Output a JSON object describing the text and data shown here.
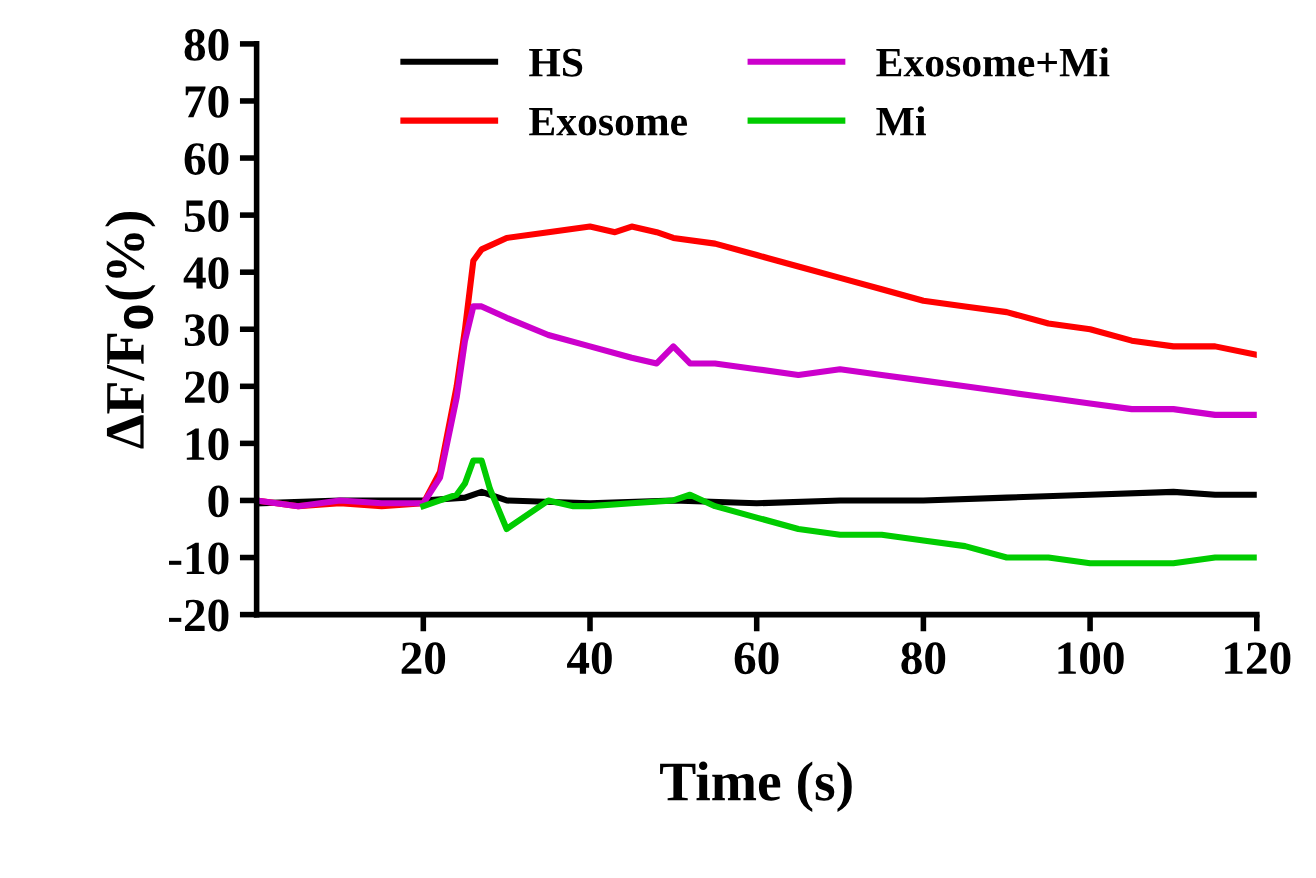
{
  "chart_data": {
    "type": "line",
    "xlabel": "Time (s)",
    "ylabel": "ΔF/F$_{0}$(%)",
    "xlim": [
      0,
      120
    ],
    "ylim": [
      -20,
      80
    ],
    "xticks": [
      20,
      40,
      60,
      80,
      100,
      120
    ],
    "yticks": [
      -20,
      -10,
      0,
      10,
      20,
      30,
      40,
      50,
      60,
      70,
      80
    ],
    "grid": false,
    "legend": "top",
    "marker": "none",
    "line_style": "solid",
    "series": [
      {
        "name": "HS",
        "color": "#000000",
        "x": [
          0,
          10,
          20,
          25,
          27,
          30,
          40,
          50,
          60,
          70,
          80,
          90,
          100,
          110,
          115,
          120
        ],
        "values": [
          -0.5,
          0,
          0,
          0.5,
          1.5,
          0,
          -0.5,
          0,
          -0.5,
          0,
          0,
          0.5,
          1,
          1.5,
          1,
          1
        ]
      },
      {
        "name": "Exosome",
        "color": "#ff0000",
        "x": [
          0,
          5,
          10,
          15,
          20,
          22,
          24,
          25,
          26,
          27,
          30,
          35,
          40,
          43,
          45,
          48,
          50,
          55,
          60,
          65,
          70,
          75,
          80,
          85,
          90,
          95,
          100,
          105,
          110,
          115,
          120
        ],
        "values": [
          0,
          -1,
          -0.5,
          -1,
          -0.5,
          5,
          20,
          30,
          42,
          44,
          46,
          47,
          48,
          47,
          48,
          47,
          46,
          45,
          43,
          41,
          39,
          37,
          35,
          34,
          33,
          31,
          30,
          28,
          27,
          27,
          25.5
        ]
      },
      {
        "name": "Exosome+Mi",
        "color": "#cc00cc",
        "x": [
          0,
          5,
          10,
          15,
          20,
          22,
          24,
          25,
          26,
          27,
          30,
          35,
          40,
          45,
          48,
          50,
          52,
          55,
          60,
          65,
          70,
          75,
          80,
          85,
          90,
          95,
          100,
          105,
          110,
          115,
          120
        ],
        "values": [
          0,
          -1,
          0,
          -0.5,
          -0.5,
          4,
          18,
          28,
          34,
          34,
          32,
          29,
          27,
          25,
          24,
          27,
          24,
          24,
          23,
          22,
          23,
          22,
          21,
          20,
          19,
          18,
          17,
          16,
          16,
          15,
          15
        ]
      },
      {
        "name": "Mi",
        "color": "#00cc00",
        "x": [
          20,
          22,
          24,
          25,
          26,
          27,
          28,
          30,
          32,
          35,
          38,
          40,
          45,
          50,
          52,
          55,
          60,
          65,
          70,
          75,
          80,
          85,
          90,
          95,
          100,
          105,
          110,
          115,
          120
        ],
        "values": [
          -1,
          0,
          1,
          3,
          7,
          7,
          2,
          -5,
          -3,
          0,
          -1,
          -1,
          -0.5,
          0,
          1,
          -1,
          -3,
          -5,
          -6,
          -6,
          -7,
          -8,
          -10,
          -10,
          -11,
          -11,
          -11,
          -10,
          -10
        ]
      }
    ]
  }
}
